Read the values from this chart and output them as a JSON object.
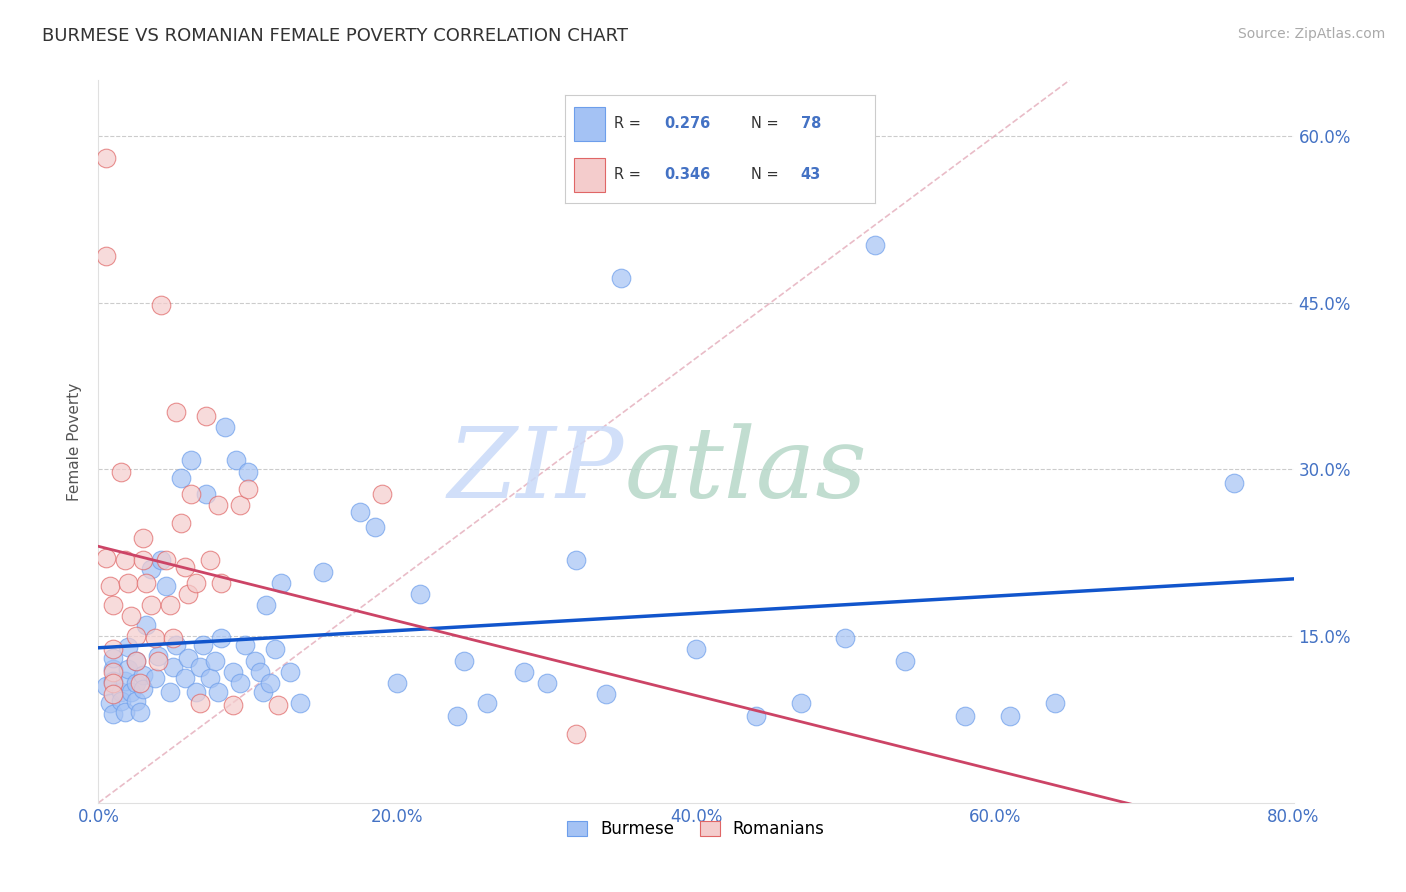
{
  "title": "BURMESE VS ROMANIAN FEMALE POVERTY CORRELATION CHART",
  "source_text": "Source: ZipAtlas.com",
  "ylabel": "Female Poverty",
  "xlim": [
    0.0,
    0.8
  ],
  "ylim": [
    0.0,
    0.65
  ],
  "xtick_labels": [
    "0.0%",
    "20.0%",
    "40.0%",
    "60.0%",
    "80.0%"
  ],
  "xtick_vals": [
    0.0,
    0.2,
    0.4,
    0.6,
    0.8
  ],
  "ytick_labels": [
    "15.0%",
    "30.0%",
    "45.0%",
    "60.0%"
  ],
  "ytick_vals": [
    0.15,
    0.3,
    0.45,
    0.6
  ],
  "burmese_color": "#a4c2f4",
  "burmese_edge_color": "#6d9eeb",
  "romanian_color": "#f4cccc",
  "romanian_edge_color": "#e06666",
  "blue_line_color": "#1155cc",
  "pink_line_color": "#cc4466",
  "diag_line_color": "#e0a0b0",
  "burmese_R": 0.276,
  "burmese_N": 78,
  "romanian_R": 0.346,
  "romanian_N": 43,
  "watermark_zip_color": "#c9daf8",
  "watermark_atlas_color": "#b6d7c8",
  "burmese_scatter": [
    [
      0.005,
      0.105
    ],
    [
      0.008,
      0.09
    ],
    [
      0.01,
      0.08
    ],
    [
      0.01,
      0.12
    ],
    [
      0.01,
      0.11
    ],
    [
      0.01,
      0.13
    ],
    [
      0.015,
      0.1
    ],
    [
      0.015,
      0.092
    ],
    [
      0.018,
      0.11
    ],
    [
      0.018,
      0.082
    ],
    [
      0.02,
      0.12
    ],
    [
      0.02,
      0.14
    ],
    [
      0.022,
      0.1
    ],
    [
      0.025,
      0.108
    ],
    [
      0.025,
      0.128
    ],
    [
      0.025,
      0.092
    ],
    [
      0.028,
      0.082
    ],
    [
      0.03,
      0.115
    ],
    [
      0.03,
      0.102
    ],
    [
      0.032,
      0.16
    ],
    [
      0.035,
      0.21
    ],
    [
      0.038,
      0.112
    ],
    [
      0.04,
      0.132
    ],
    [
      0.042,
      0.218
    ],
    [
      0.045,
      0.195
    ],
    [
      0.048,
      0.1
    ],
    [
      0.05,
      0.122
    ],
    [
      0.052,
      0.142
    ],
    [
      0.055,
      0.292
    ],
    [
      0.058,
      0.112
    ],
    [
      0.06,
      0.13
    ],
    [
      0.062,
      0.308
    ],
    [
      0.065,
      0.1
    ],
    [
      0.068,
      0.122
    ],
    [
      0.07,
      0.142
    ],
    [
      0.072,
      0.278
    ],
    [
      0.075,
      0.112
    ],
    [
      0.078,
      0.128
    ],
    [
      0.08,
      0.1
    ],
    [
      0.082,
      0.148
    ],
    [
      0.085,
      0.338
    ],
    [
      0.09,
      0.118
    ],
    [
      0.092,
      0.308
    ],
    [
      0.095,
      0.108
    ],
    [
      0.098,
      0.142
    ],
    [
      0.1,
      0.298
    ],
    [
      0.105,
      0.128
    ],
    [
      0.108,
      0.118
    ],
    [
      0.11,
      0.1
    ],
    [
      0.112,
      0.178
    ],
    [
      0.115,
      0.108
    ],
    [
      0.118,
      0.138
    ],
    [
      0.122,
      0.198
    ],
    [
      0.128,
      0.118
    ],
    [
      0.135,
      0.09
    ],
    [
      0.15,
      0.208
    ],
    [
      0.175,
      0.262
    ],
    [
      0.185,
      0.248
    ],
    [
      0.2,
      0.108
    ],
    [
      0.215,
      0.188
    ],
    [
      0.24,
      0.078
    ],
    [
      0.245,
      0.128
    ],
    [
      0.26,
      0.09
    ],
    [
      0.285,
      0.118
    ],
    [
      0.3,
      0.108
    ],
    [
      0.32,
      0.218
    ],
    [
      0.34,
      0.098
    ],
    [
      0.35,
      0.472
    ],
    [
      0.4,
      0.138
    ],
    [
      0.44,
      0.078
    ],
    [
      0.47,
      0.09
    ],
    [
      0.5,
      0.148
    ],
    [
      0.52,
      0.502
    ],
    [
      0.54,
      0.128
    ],
    [
      0.58,
      0.078
    ],
    [
      0.61,
      0.078
    ],
    [
      0.64,
      0.09
    ],
    [
      0.76,
      0.288
    ]
  ],
  "romanian_scatter": [
    [
      0.005,
      0.58
    ],
    [
      0.005,
      0.492
    ],
    [
      0.005,
      0.22
    ],
    [
      0.008,
      0.195
    ],
    [
      0.01,
      0.178
    ],
    [
      0.01,
      0.138
    ],
    [
      0.01,
      0.118
    ],
    [
      0.01,
      0.108
    ],
    [
      0.01,
      0.098
    ],
    [
      0.015,
      0.298
    ],
    [
      0.018,
      0.218
    ],
    [
      0.02,
      0.198
    ],
    [
      0.022,
      0.168
    ],
    [
      0.025,
      0.15
    ],
    [
      0.025,
      0.128
    ],
    [
      0.028,
      0.108
    ],
    [
      0.03,
      0.238
    ],
    [
      0.03,
      0.218
    ],
    [
      0.032,
      0.198
    ],
    [
      0.035,
      0.178
    ],
    [
      0.038,
      0.148
    ],
    [
      0.04,
      0.128
    ],
    [
      0.042,
      0.448
    ],
    [
      0.045,
      0.218
    ],
    [
      0.048,
      0.178
    ],
    [
      0.05,
      0.148
    ],
    [
      0.052,
      0.352
    ],
    [
      0.055,
      0.252
    ],
    [
      0.058,
      0.212
    ],
    [
      0.06,
      0.188
    ],
    [
      0.062,
      0.278
    ],
    [
      0.065,
      0.198
    ],
    [
      0.068,
      0.09
    ],
    [
      0.072,
      0.348
    ],
    [
      0.075,
      0.218
    ],
    [
      0.08,
      0.268
    ],
    [
      0.082,
      0.198
    ],
    [
      0.09,
      0.088
    ],
    [
      0.095,
      0.268
    ],
    [
      0.1,
      0.282
    ],
    [
      0.12,
      0.088
    ],
    [
      0.19,
      0.278
    ],
    [
      0.32,
      0.062
    ]
  ]
}
